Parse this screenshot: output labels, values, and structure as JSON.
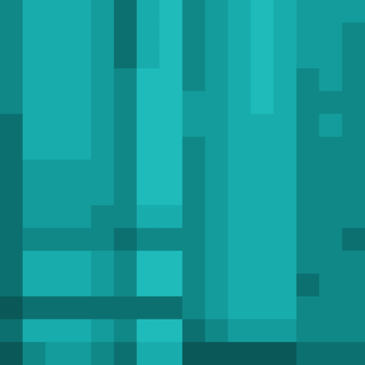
{
  "chart_data": {
    "type": "heatmap",
    "tick_labels": false,
    "zlim": [
      0,
      9
    ],
    "cells": [
      [
        4,
        6,
        6,
        6,
        5,
        3,
        6,
        7,
        4,
        5,
        6,
        7,
        6,
        5,
        5,
        5
      ],
      [
        4,
        6,
        6,
        6,
        5,
        3,
        6,
        7,
        4,
        5,
        6,
        7,
        6,
        5,
        5,
        4
      ],
      [
        4,
        6,
        6,
        6,
        5,
        3,
        6,
        7,
        4,
        5,
        6,
        7,
        6,
        5,
        5,
        4
      ],
      [
        4,
        6,
        6,
        6,
        5,
        4,
        7,
        7,
        4,
        5,
        6,
        7,
        6,
        4,
        5,
        4
      ],
      [
        4,
        6,
        6,
        6,
        5,
        4,
        7,
        7,
        5,
        5,
        6,
        7,
        6,
        4,
        4,
        4
      ],
      [
        3,
        6,
        6,
        6,
        5,
        4,
        7,
        7,
        5,
        5,
        6,
        6,
        6,
        4,
        5,
        4
      ],
      [
        3,
        6,
        6,
        6,
        5,
        4,
        7,
        7,
        4,
        5,
        6,
        6,
        6,
        4,
        4,
        4
      ],
      [
        3,
        5,
        5,
        5,
        5,
        4,
        7,
        7,
        4,
        5,
        6,
        6,
        6,
        4,
        4,
        4
      ],
      [
        3,
        5,
        5,
        5,
        5,
        4,
        7,
        7,
        4,
        5,
        6,
        6,
        6,
        4,
        4,
        4
      ],
      [
        3,
        5,
        5,
        5,
        4,
        4,
        6,
        6,
        4,
        5,
        6,
        6,
        6,
        4,
        4,
        4
      ],
      [
        3,
        4,
        4,
        4,
        4,
        3,
        4,
        4,
        4,
        5,
        6,
        6,
        6,
        4,
        4,
        3
      ],
      [
        3,
        6,
        6,
        6,
        5,
        4,
        7,
        7,
        4,
        5,
        6,
        6,
        6,
        4,
        4,
        4
      ],
      [
        3,
        6,
        6,
        6,
        5,
        4,
        7,
        7,
        4,
        5,
        6,
        6,
        6,
        3,
        4,
        4
      ],
      [
        2,
        3,
        3,
        3,
        3,
        3,
        3,
        3,
        4,
        5,
        6,
        6,
        6,
        4,
        4,
        4
      ],
      [
        3,
        6,
        6,
        6,
        5,
        4,
        7,
        7,
        3,
        4,
        5,
        5,
        5,
        4,
        4,
        4
      ],
      [
        2,
        4,
        5,
        5,
        4,
        3,
        6,
        6,
        2,
        2,
        2,
        2,
        2,
        3,
        3,
        3
      ]
    ]
  }
}
